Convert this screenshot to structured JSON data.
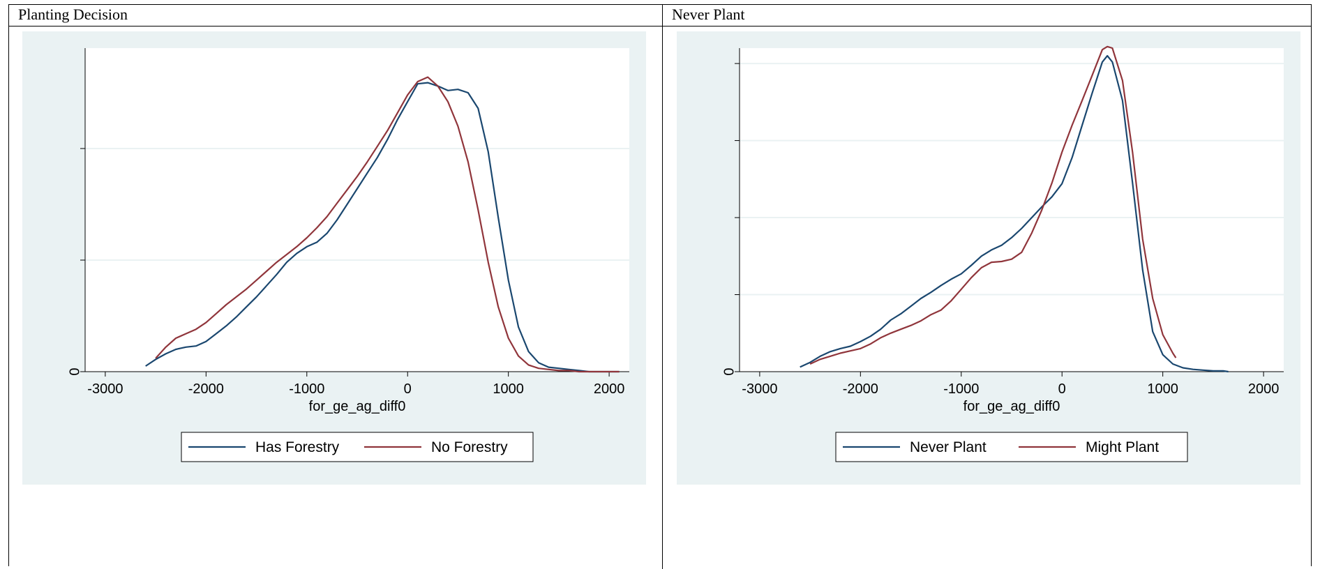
{
  "cells": [
    {
      "label": "Planting Decision"
    },
    {
      "label": "Never Plant"
    }
  ],
  "chart_data": [
    {
      "type": "line",
      "title": "",
      "xlabel": "for_ge_ag_diff0",
      "ylabel": "",
      "xlim": [
        -3200,
        2200
      ],
      "ylim": [
        0,
        2.9
      ],
      "xticks": [
        -3000,
        -2000,
        -1000,
        0,
        1000,
        2000
      ],
      "yticks": [
        0,
        1,
        2,
        3
      ],
      "ytick_labels": [
        "0",
        "",
        "",
        ""
      ],
      "grid": true,
      "legend": "bottom",
      "series": [
        {
          "name": "Has Forestry",
          "color": "#1a476f",
          "x": [
            -2600,
            -2500,
            -2400,
            -2300,
            -2200,
            -2100,
            -2000,
            -1900,
            -1800,
            -1700,
            -1600,
            -1500,
            -1400,
            -1300,
            -1200,
            -1100,
            -1000,
            -900,
            -800,
            -700,
            -600,
            -500,
            -400,
            -300,
            -200,
            -100,
            0,
            100,
            200,
            300,
            400,
            500,
            600,
            700,
            800,
            900,
            1000,
            1100,
            1200,
            1300,
            1400,
            1500,
            1600,
            1700,
            1800,
            1900,
            2000,
            2100
          ],
          "y": [
            0.05,
            0.11,
            0.16,
            0.2,
            0.22,
            0.23,
            0.27,
            0.34,
            0.41,
            0.49,
            0.58,
            0.67,
            0.77,
            0.87,
            0.98,
            1.06,
            1.12,
            1.16,
            1.24,
            1.36,
            1.5,
            1.64,
            1.78,
            1.92,
            2.08,
            2.26,
            2.42,
            2.58,
            2.59,
            2.56,
            2.52,
            2.53,
            2.5,
            2.36,
            1.97,
            1.38,
            0.82,
            0.4,
            0.18,
            0.08,
            0.04,
            0.03,
            0.02,
            0.01,
            0.0,
            0.0,
            0.0,
            0.0
          ]
        },
        {
          "name": "No Forestry",
          "color": "#90353b",
          "x": [
            -2500,
            -2400,
            -2300,
            -2200,
            -2100,
            -2000,
            -1900,
            -1800,
            -1700,
            -1600,
            -1500,
            -1400,
            -1300,
            -1200,
            -1100,
            -1000,
            -900,
            -800,
            -700,
            -600,
            -500,
            -400,
            -300,
            -200,
            -100,
            0,
            100,
            200,
            300,
            400,
            500,
            600,
            700,
            800,
            900,
            1000,
            1100,
            1200,
            1300,
            1400,
            1500,
            1600,
            1700,
            1800,
            1900,
            2000,
            2100
          ],
          "y": [
            0.12,
            0.22,
            0.3,
            0.34,
            0.38,
            0.44,
            0.52,
            0.6,
            0.67,
            0.74,
            0.82,
            0.9,
            0.98,
            1.05,
            1.12,
            1.2,
            1.29,
            1.39,
            1.51,
            1.63,
            1.75,
            1.88,
            2.02,
            2.16,
            2.32,
            2.48,
            2.6,
            2.64,
            2.56,
            2.42,
            2.2,
            1.88,
            1.45,
            0.98,
            0.58,
            0.3,
            0.14,
            0.06,
            0.03,
            0.02,
            0.01,
            0.01,
            0.0,
            0.0,
            0.0,
            0.0,
            0.0
          ]
        }
      ]
    },
    {
      "type": "line",
      "title": "",
      "xlabel": "for_ge_ag_diff0",
      "ylabel": "",
      "xlim": [
        -3200,
        2200
      ],
      "ylim": [
        0,
        4.2
      ],
      "xticks": [
        -3000,
        -2000,
        -1000,
        0,
        1000,
        2000
      ],
      "yticks": [
        0,
        1,
        2,
        3,
        4
      ],
      "ytick_labels": [
        "0",
        "",
        "",
        "",
        ""
      ],
      "grid": true,
      "legend": "bottom",
      "series": [
        {
          "name": "Never Plant",
          "color": "#1a476f",
          "x": [
            -2600,
            -2500,
            -2400,
            -2300,
            -2200,
            -2100,
            -2000,
            -1900,
            -1800,
            -1700,
            -1600,
            -1500,
            -1400,
            -1300,
            -1200,
            -1100,
            -1000,
            -900,
            -800,
            -700,
            -600,
            -500,
            -400,
            -300,
            -200,
            -100,
            0,
            100,
            200,
            300,
            400,
            450,
            500,
            600,
            700,
            800,
            900,
            1000,
            1100,
            1200,
            1300,
            1400,
            1500,
            1600,
            1650
          ],
          "y": [
            0.06,
            0.12,
            0.2,
            0.26,
            0.3,
            0.33,
            0.39,
            0.46,
            0.55,
            0.67,
            0.75,
            0.85,
            0.95,
            1.03,
            1.12,
            1.2,
            1.27,
            1.38,
            1.5,
            1.58,
            1.64,
            1.74,
            1.86,
            2.0,
            2.14,
            2.27,
            2.44,
            2.78,
            3.2,
            3.62,
            4.02,
            4.1,
            4.02,
            3.52,
            2.45,
            1.32,
            0.52,
            0.22,
            0.1,
            0.05,
            0.03,
            0.02,
            0.01,
            0.01,
            0.0
          ]
        },
        {
          "name": "Might Plant",
          "color": "#90353b",
          "x": [
            -2500,
            -2400,
            -2300,
            -2200,
            -2100,
            -2000,
            -1900,
            -1800,
            -1700,
            -1600,
            -1500,
            -1400,
            -1300,
            -1200,
            -1100,
            -1000,
            -900,
            -800,
            -700,
            -600,
            -500,
            -400,
            -300,
            -200,
            -100,
            0,
            100,
            200,
            300,
            400,
            450,
            500,
            600,
            700,
            800,
            900,
            1000,
            1100,
            1130
          ],
          "y": [
            0.1,
            0.16,
            0.2,
            0.24,
            0.27,
            0.3,
            0.36,
            0.44,
            0.5,
            0.55,
            0.6,
            0.66,
            0.74,
            0.8,
            0.92,
            1.07,
            1.22,
            1.35,
            1.42,
            1.43,
            1.46,
            1.55,
            1.8,
            2.1,
            2.45,
            2.85,
            3.2,
            3.52,
            3.85,
            4.18,
            4.22,
            4.2,
            3.78,
            2.85,
            1.72,
            0.95,
            0.48,
            0.24,
            0.18
          ]
        }
      ]
    }
  ]
}
